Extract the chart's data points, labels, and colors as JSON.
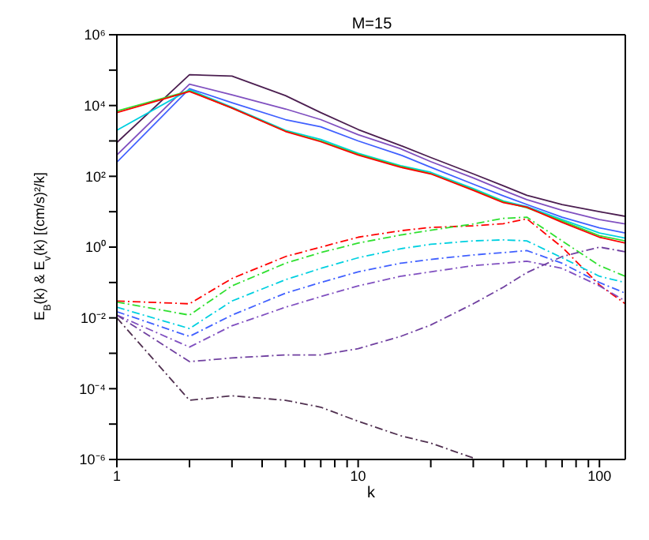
{
  "chart_data": {
    "type": "line",
    "title": "M=15",
    "xlabel": "k",
    "ylabel": "E$_{B}$(k) & E$_{v}$(k)  [(cm/s)²/k]",
    "x": [
      1,
      2,
      3,
      5,
      7,
      10,
      15,
      20,
      30,
      40,
      50,
      70,
      100,
      128
    ],
    "log": "xy",
    "marker": "none",
    "xlim": [
      1,
      128
    ],
    "ylim": [
      1e-06,
      1000000.0
    ],
    "xticks": [
      1,
      {
        "value": 2,
        "label": null
      },
      {
        "value": 3,
        "label": null
      },
      {
        "value": 4,
        "label": null
      },
      {
        "value": 5,
        "label": null
      },
      {
        "value": 6,
        "label": null
      },
      {
        "value": 7,
        "label": null
      },
      {
        "value": 8,
        "label": null
      },
      {
        "value": 9,
        "label": null
      },
      10,
      {
        "value": 20,
        "label": null
      },
      {
        "value": 30,
        "label": null
      },
      {
        "value": 40,
        "label": null
      },
      {
        "value": 50,
        "label": null
      },
      {
        "value": 60,
        "label": null
      },
      {
        "value": 70,
        "label": null
      },
      {
        "value": 80,
        "label": null
      },
      {
        "value": 90,
        "label": null
      },
      100
    ],
    "yticks": [
      {
        "value": 1e-06,
        "label": "10⁻⁶"
      },
      {
        "value": 1e-05,
        "label": null
      },
      {
        "value": 0.0001,
        "label": "10⁻⁴"
      },
      {
        "value": 0.001,
        "label": null
      },
      {
        "value": 0.01,
        "label": "10⁻²"
      },
      {
        "value": 0.1,
        "label": null
      },
      {
        "value": 1,
        "label": "10⁰"
      },
      {
        "value": 10,
        "label": null
      },
      {
        "value": 100,
        "label": "10²"
      },
      {
        "value": 1000,
        "label": null
      },
      {
        "value": 10000,
        "label": "10⁴"
      },
      {
        "value": 100000,
        "label": null
      },
      {
        "value": 1000000,
        "label": "10⁶"
      }
    ],
    "series": [
      {
        "color": "#4b1e50",
        "line_style": "solid",
        "values": [
          900,
          74000,
          68000,
          19000,
          6300,
          2100,
          740,
          340,
          117,
          54,
          29,
          16,
          10,
          7.4
        ]
      },
      {
        "color": "#8050c0",
        "line_style": "solid",
        "values": [
          400,
          40000,
          20000,
          8000,
          4000,
          1500,
          600,
          260,
          90,
          40,
          22,
          11,
          6,
          4.5
        ]
      },
      {
        "color": "#4060ff",
        "line_style": "solid",
        "values": [
          250,
          30000,
          12000,
          4000,
          2500,
          1000,
          400,
          180,
          60,
          28,
          16,
          7,
          3.5,
          2.5
        ]
      },
      {
        "color": "#00d0e0",
        "line_style": "solid",
        "values": [
          2000,
          28000,
          9000,
          2000,
          1100,
          450,
          200,
          130,
          45,
          20,
          14,
          6,
          2.5,
          1.8
        ]
      },
      {
        "color": "#30e030",
        "line_style": "solid",
        "values": [
          7000,
          26000,
          8500,
          1900,
          1000,
          420,
          190,
          120,
          42,
          19,
          13,
          5.5,
          2.1,
          1.5
        ]
      },
      {
        "color": "#ff0000",
        "line_style": "solid",
        "values": [
          6300,
          25000,
          8500,
          1850,
          950,
          400,
          180,
          117,
          40,
          18,
          13.5,
          5,
          1.9,
          1.3
        ]
      },
      {
        "color": "#ff0000",
        "line_style": "dashdot",
        "values": [
          0.03,
          0.025,
          0.13,
          0.54,
          1,
          1.9,
          2.9,
          3.6,
          4,
          4.6,
          6.3,
          1,
          0.085,
          0.025
        ]
      },
      {
        "color": "#30e030",
        "line_style": "dashdot",
        "values": [
          0.028,
          0.012,
          0.08,
          0.35,
          0.7,
          1.3,
          2.2,
          3,
          4.5,
          6.5,
          7,
          1.5,
          0.3,
          0.15
        ]
      },
      {
        "color": "#00d0e0",
        "line_style": "dashdot",
        "values": [
          0.02,
          0.005,
          0.03,
          0.12,
          0.25,
          0.5,
          0.9,
          1.2,
          1.5,
          1.6,
          1.5,
          0.5,
          0.15,
          0.1
        ]
      },
      {
        "color": "#4060ff",
        "line_style": "dashdot",
        "values": [
          0.015,
          0.003,
          0.012,
          0.05,
          0.1,
          0.2,
          0.35,
          0.45,
          0.6,
          0.7,
          0.8,
          0.35,
          0.1,
          0.05
        ]
      },
      {
        "color": "#8050c0",
        "line_style": "dashdot",
        "values": [
          0.012,
          0.0015,
          0.006,
          0.02,
          0.04,
          0.08,
          0.15,
          0.2,
          0.3,
          0.35,
          0.4,
          0.25,
          0.08,
          0.03
        ]
      },
      {
        "color": "#7040a0",
        "line_style": "dashdot",
        "values": [
          0.012,
          0.00058,
          0.00074,
          0.0009,
          0.0009,
          0.00135,
          0.003,
          0.0063,
          0.025,
          0.074,
          0.19,
          0.54,
          1,
          0.74
        ]
      },
      {
        "color": "#503050",
        "line_style": "dashdot",
        "values": [
          0.01,
          4.7e-05,
          6.3e-05,
          4.7e-05,
          3e-05,
          1.2e-05,
          4.7e-06,
          2.9e-06,
          1.1e-06,
          null,
          null,
          null,
          null,
          null
        ]
      }
    ]
  }
}
